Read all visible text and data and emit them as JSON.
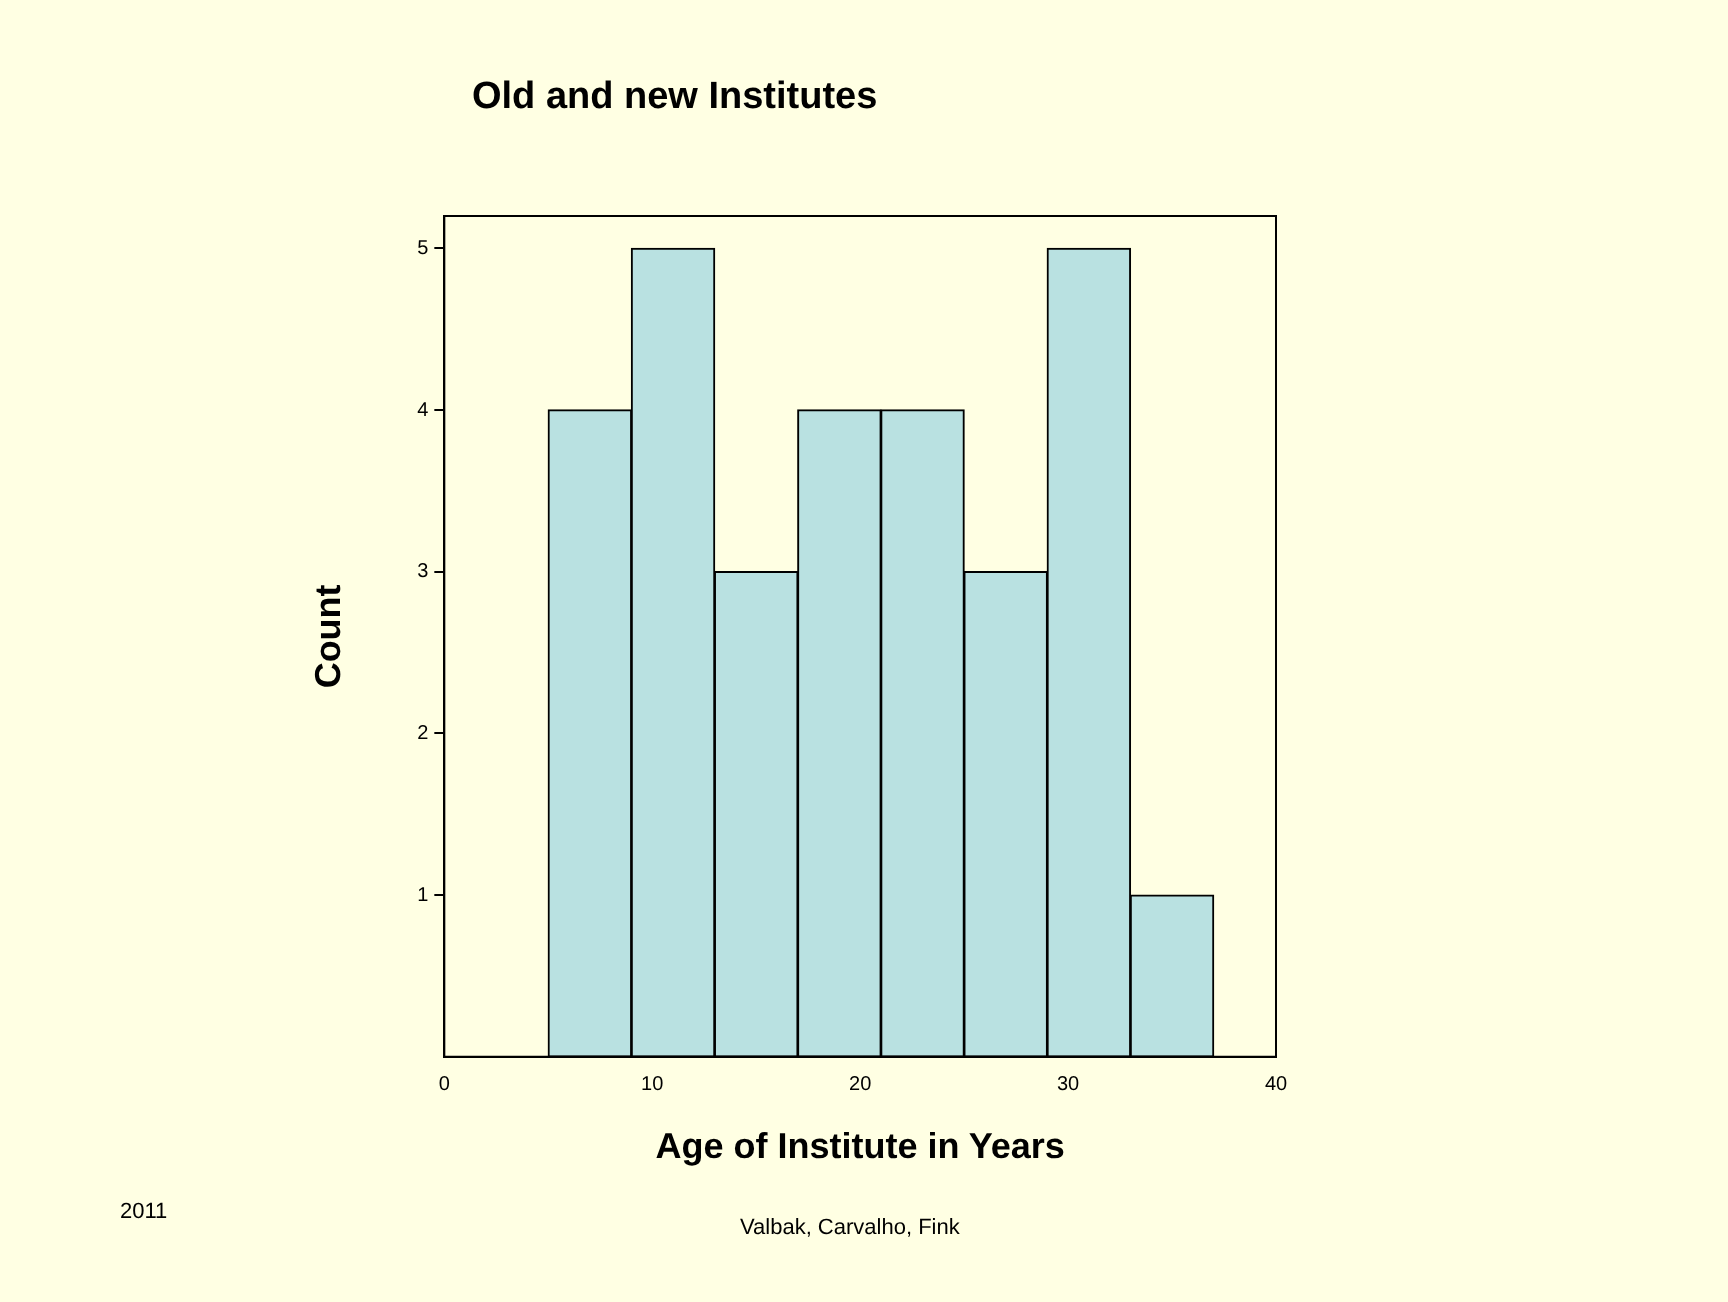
{
  "chart_data": {
    "type": "histogram",
    "title": "Old and new Institutes",
    "xlabel": "Age of Institute in Years",
    "ylabel": "Count",
    "bins": [
      5,
      9,
      13,
      17,
      21,
      25,
      29,
      33,
      37
    ],
    "values": [
      4,
      5,
      3,
      4,
      4,
      3,
      5,
      1
    ],
    "color": "#b9e1e1",
    "xlim": [
      0,
      40
    ],
    "xticks": [
      0,
      10,
      20,
      30,
      40
    ],
    "ylim": [
      0,
      5.2
    ],
    "yticks": [
      1,
      2,
      3,
      4,
      5
    ],
    "grid": false,
    "legend": false,
    "annotations": [
      "2011",
      "Valbak, Carvalho, Fink"
    ]
  }
}
